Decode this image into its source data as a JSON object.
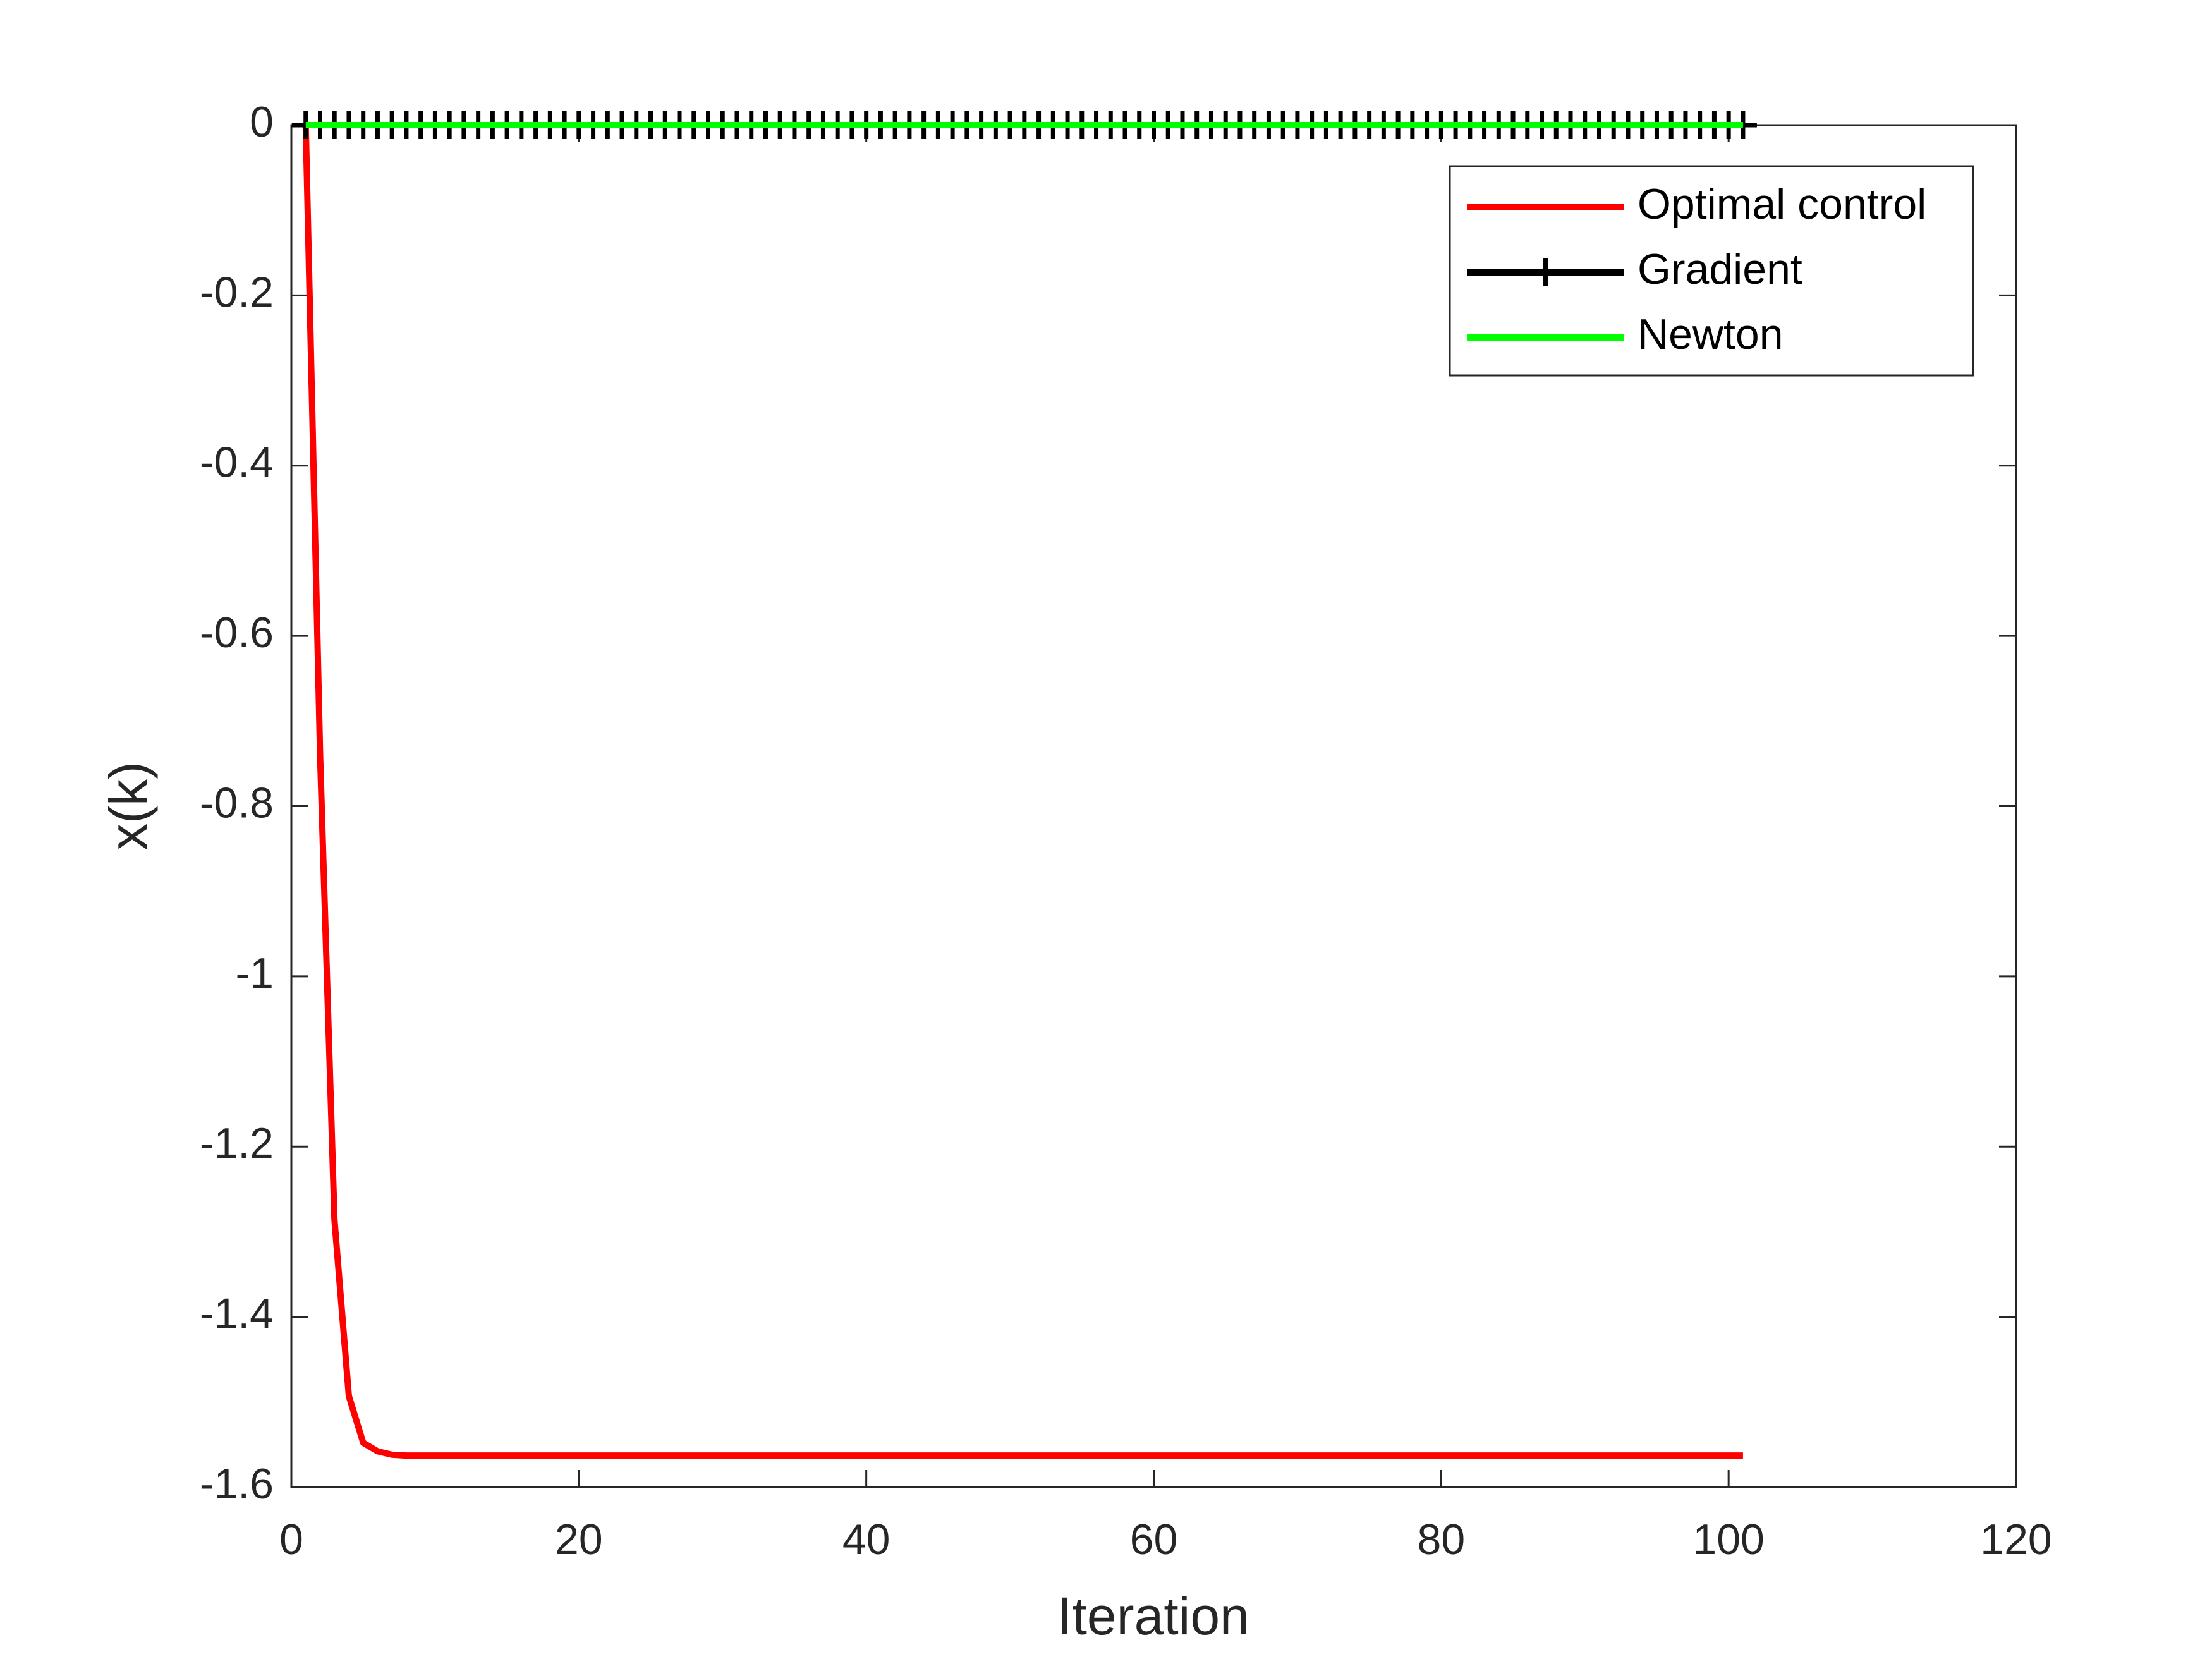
{
  "chart_data": {
    "type": "line",
    "xlabel": "Iteration",
    "ylabel": "x(k)",
    "xlim": [
      0,
      120
    ],
    "xticks": [
      0,
      20,
      40,
      60,
      80,
      100,
      120
    ],
    "ylim": [
      -1.6,
      0
    ],
    "yticks": [
      0,
      -0.2,
      -0.4,
      -0.6,
      -0.8,
      -1,
      -1.2,
      -1.4,
      -1.6
    ],
    "legend": "upper right",
    "grid": false,
    "x": [
      1,
      2,
      3,
      4,
      5,
      6,
      7,
      8,
      9,
      10,
      11,
      12,
      13,
      14,
      15,
      16,
      17,
      18,
      19,
      20,
      21,
      22,
      23,
      24,
      25,
      26,
      27,
      28,
      29,
      30,
      31,
      32,
      33,
      34,
      35,
      36,
      37,
      38,
      39,
      40,
      41,
      42,
      43,
      44,
      45,
      46,
      47,
      48,
      49,
      50,
      51,
      52,
      53,
      54,
      55,
      56,
      57,
      58,
      59,
      60,
      61,
      62,
      63,
      64,
      65,
      66,
      67,
      68,
      69,
      70,
      71,
      72,
      73,
      74,
      75,
      76,
      77,
      78,
      79,
      80,
      81,
      82,
      83,
      84,
      85,
      86,
      87,
      88,
      89,
      90,
      91,
      92,
      93,
      94,
      95,
      96,
      97,
      98,
      99,
      100,
      101
    ],
    "series": [
      {
        "name": "Optimal control",
        "color": "#ff0000",
        "marker": "none",
        "values": [
          0,
          -0.74,
          -1.286,
          -1.493,
          -1.548,
          -1.558,
          -1.562,
          -1.563,
          -1.563,
          -1.563,
          -1.563,
          -1.563,
          -1.563,
          -1.563,
          -1.563,
          -1.563,
          -1.563,
          -1.563,
          -1.563,
          -1.563,
          -1.563,
          -1.563,
          -1.563,
          -1.563,
          -1.563,
          -1.563,
          -1.563,
          -1.563,
          -1.563,
          -1.563,
          -1.563,
          -1.563,
          -1.563,
          -1.563,
          -1.563,
          -1.563,
          -1.563,
          -1.563,
          -1.563,
          -1.563,
          -1.563,
          -1.563,
          -1.563,
          -1.563,
          -1.563,
          -1.563,
          -1.563,
          -1.563,
          -1.563,
          -1.563,
          -1.563,
          -1.563,
          -1.563,
          -1.563,
          -1.563,
          -1.563,
          -1.563,
          -1.563,
          -1.563,
          -1.563,
          -1.563,
          -1.563,
          -1.563,
          -1.563,
          -1.563,
          -1.563,
          -1.563,
          -1.563,
          -1.563,
          -1.563,
          -1.563,
          -1.563,
          -1.563,
          -1.563,
          -1.563,
          -1.563,
          -1.563,
          -1.563,
          -1.563,
          -1.563,
          -1.563,
          -1.563,
          -1.563,
          -1.563,
          -1.563,
          -1.563,
          -1.563,
          -1.563,
          -1.563,
          -1.563,
          -1.563,
          -1.563,
          -1.563,
          -1.563,
          -1.563,
          -1.563,
          -1.563,
          -1.563,
          -1.563,
          -1.563,
          -1.563
        ]
      },
      {
        "name": "Gradient",
        "color": "#000000",
        "marker": "plus",
        "values": [
          0,
          0,
          0,
          0,
          0,
          0,
          0,
          0,
          0,
          0,
          0,
          0,
          0,
          0,
          0,
          0,
          0,
          0,
          0,
          0,
          0,
          0,
          0,
          0,
          0,
          0,
          0,
          0,
          0,
          0,
          0,
          0,
          0,
          0,
          0,
          0,
          0,
          0,
          0,
          0,
          0,
          0,
          0,
          0,
          0,
          0,
          0,
          0,
          0,
          0,
          0,
          0,
          0,
          0,
          0,
          0,
          0,
          0,
          0,
          0,
          0,
          0,
          0,
          0,
          0,
          0,
          0,
          0,
          0,
          0,
          0,
          0,
          0,
          0,
          0,
          0,
          0,
          0,
          0,
          0,
          0,
          0,
          0,
          0,
          0,
          0,
          0,
          0,
          0,
          0,
          0,
          0,
          0,
          0,
          0,
          0,
          0,
          0,
          0,
          0,
          0
        ]
      },
      {
        "name": "Newton",
        "color": "#00ff00",
        "marker": "none",
        "values": [
          0,
          0,
          0,
          0,
          0,
          0,
          0,
          0,
          0,
          0,
          0,
          0,
          0,
          0,
          0,
          0,
          0,
          0,
          0,
          0,
          0,
          0,
          0,
          0,
          0,
          0,
          0,
          0,
          0,
          0,
          0,
          0,
          0,
          0,
          0,
          0,
          0,
          0,
          0,
          0,
          0,
          0,
          0,
          0,
          0,
          0,
          0,
          0,
          0,
          0,
          0,
          0,
          0,
          0,
          0,
          0,
          0,
          0,
          0,
          0,
          0,
          0,
          0,
          0,
          0,
          0,
          0,
          0,
          0,
          0,
          0,
          0,
          0,
          0,
          0,
          0,
          0,
          0,
          0,
          0,
          0,
          0,
          0,
          0,
          0,
          0,
          0,
          0,
          0,
          0,
          0,
          0,
          0,
          0,
          0,
          0,
          0,
          0,
          0,
          0,
          0
        ]
      }
    ]
  }
}
